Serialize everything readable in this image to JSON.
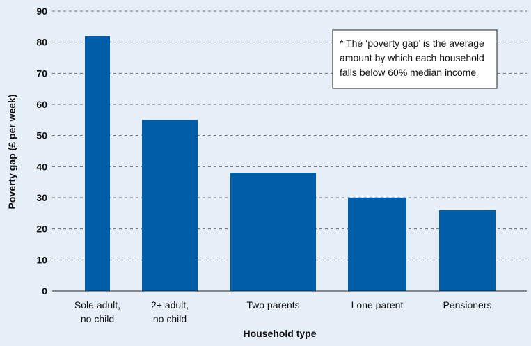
{
  "chart_data": {
    "type": "bar",
    "categories": [
      [
        "Sole adult,",
        "no child"
      ],
      [
        "2+ adult,",
        "no child"
      ],
      [
        "Two parents"
      ],
      [
        "Lone parent"
      ],
      [
        "Pensioners"
      ]
    ],
    "values": [
      82,
      55,
      38,
      30,
      26
    ],
    "xlabel": "Household type",
    "ylabel": "Poverty gap (£ per week)",
    "ylim": [
      0,
      90
    ],
    "yticks": [
      0,
      10,
      20,
      30,
      40,
      50,
      60,
      70,
      80,
      90
    ],
    "grid": true,
    "bar_color": "#005ea8",
    "background_color": "#e6eef7",
    "note": [
      "* The ‘poverty gap’ is the average",
      "amount by which each household",
      "falls below 60% median income"
    ]
  }
}
